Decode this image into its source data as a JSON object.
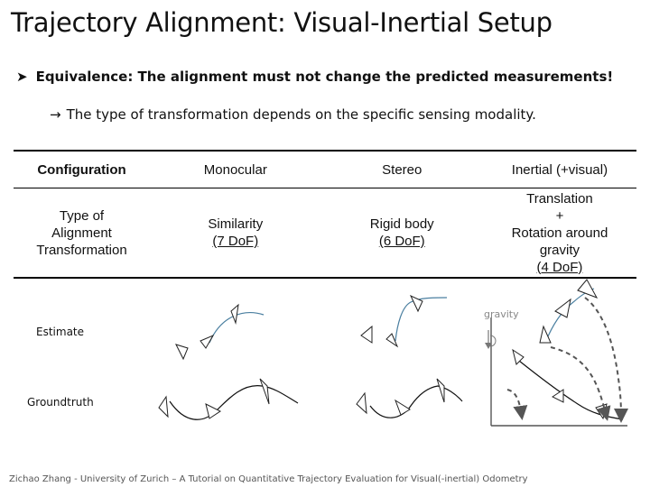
{
  "title": "Trajectory Alignment: Visual-Inertial Setup",
  "bullet": {
    "marker_icon": "arrowhead-bullet-icon",
    "text": "Equivalence: The alignment must not change the predicted measurements!"
  },
  "subbullet": {
    "arrow": "→",
    "text": "The type of transformation depends on the specific sensing modality."
  },
  "table": {
    "header": [
      "Configuration",
      "Monocular",
      "Stereo",
      "Inertial (+visual)"
    ],
    "row_label": [
      "Type of",
      "Alignment",
      "Transformation"
    ],
    "monocular": {
      "line1": "Similarity",
      "line2": "(7 DoF)"
    },
    "stereo": {
      "line1": "Rigid body",
      "line2": "(6 DoF)"
    },
    "inertial": {
      "line1": "Translation",
      "line2": "+",
      "line3": "Rotation around",
      "line4": "gravity",
      "line5": "(4 DoF)"
    }
  },
  "labels": {
    "estimate": "Estimate",
    "groundtruth": "Groundtruth",
    "gravity": "gravity"
  },
  "colors": {
    "estimate_curve": "#4a7fa0",
    "groundtruth_curve": "#111111",
    "gravity_label": "#888888",
    "dashed_curve": "#555555"
  },
  "footer": "Zichao Zhang - University of Zurich – A Tutorial on Quantitative Trajectory Evaluation for Visual(-inertial) Odometry"
}
